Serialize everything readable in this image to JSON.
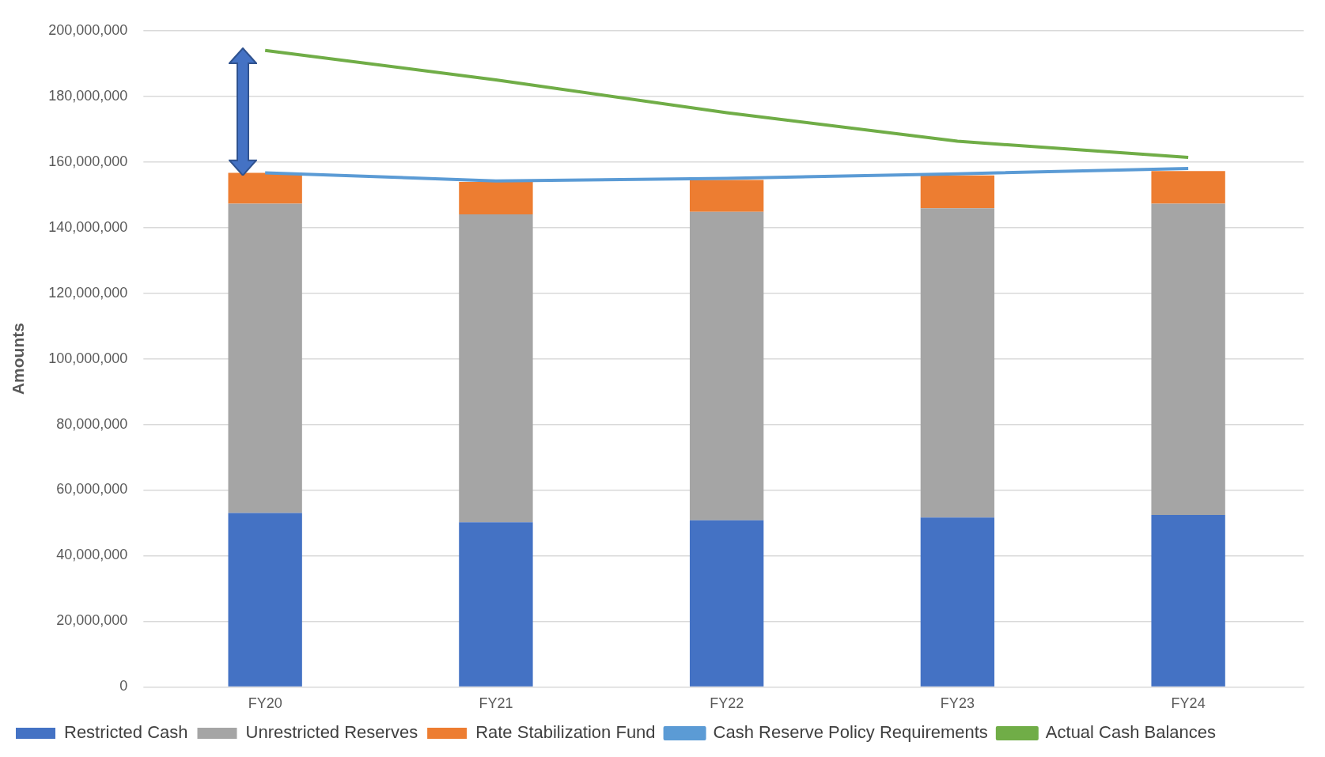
{
  "chart_data": {
    "type": "bar",
    "stacked": true,
    "ylabel": "Amounts",
    "categories": [
      "FY20",
      "FY21",
      "FY22",
      "FY23",
      "FY24"
    ],
    "series": [
      {
        "name": "Restricted Cash",
        "color": "#4472c4",
        "values": [
          53000000,
          50200000,
          50800000,
          51600000,
          52400000
        ]
      },
      {
        "name": "Unrestricted Reserves",
        "color": "#a5a5a5",
        "values": [
          94300000,
          93800000,
          94000000,
          94300000,
          94900000
        ]
      },
      {
        "name": "Rate Stabilization Fund",
        "color": "#ed7d31",
        "values": [
          9400000,
          9900000,
          9700000,
          10000000,
          9900000
        ]
      },
      {
        "name": "Cash Reserve Policy Requirements",
        "type": "line",
        "color": "#5b9bd5",
        "values": [
          156700000,
          154200000,
          155000000,
          156400000,
          158000000
        ]
      },
      {
        "name": "Actual Cash Balances",
        "type": "line",
        "color": "#70ad47",
        "values": [
          194000000,
          185000000,
          175000000,
          166300000,
          161400000
        ]
      }
    ],
    "ylim": [
      0,
      200000000
    ],
    "yticks": [
      0,
      {
        "value": 20000000,
        "label": "20,000,000"
      },
      {
        "value": 40000000,
        "label": "40,000,000"
      },
      {
        "value": 60000000,
        "label": "60,000,000"
      },
      {
        "value": 80000000,
        "label": "80,000,000"
      },
      {
        "value": 100000000,
        "label": "100,000,000"
      },
      {
        "value": 120000000,
        "label": "120,000,000"
      },
      {
        "value": 140000000,
        "label": "140,000,000"
      },
      {
        "value": 160000000,
        "label": "160,000,000"
      },
      {
        "value": 180000000,
        "label": "180,000,000"
      },
      {
        "value": 200000000,
        "label": "200,000,000"
      }
    ],
    "grid": "y",
    "legend": "bottom",
    "marker": "none"
  }
}
